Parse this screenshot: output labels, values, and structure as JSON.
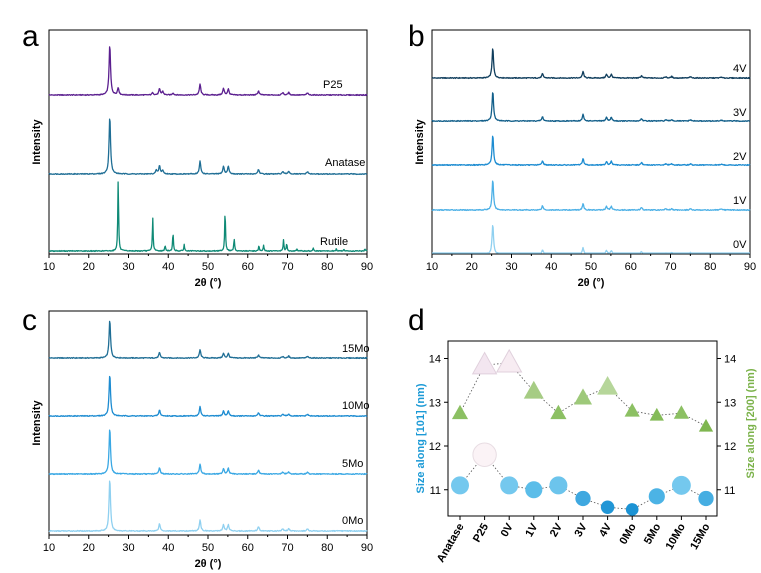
{
  "chart_data": [
    {
      "panel": "a",
      "type": "line",
      "xlabel": "2θ (°)",
      "ylabel": "Intensity",
      "xlim": [
        10,
        90
      ],
      "xticks": [
        "10",
        "20",
        "30",
        "40",
        "50",
        "60",
        "70",
        "80",
        "90"
      ],
      "series": [
        {
          "name": "P25",
          "color": "#5b1f8f",
          "peaks": [
            [
              25.3,
              100
            ],
            [
              27.4,
              14
            ],
            [
              36.1,
              5
            ],
            [
              37.8,
              12
            ],
            [
              38.6,
              7
            ],
            [
              41.2,
              4
            ],
            [
              48.0,
              22
            ],
            [
              53.9,
              13
            ],
            [
              55.1,
              12
            ],
            [
              62.7,
              8
            ],
            [
              68.8,
              5
            ],
            [
              70.3,
              5
            ],
            [
              75.0,
              4
            ]
          ]
        },
        {
          "name": "Anatase",
          "color": "#1f6e95",
          "peaks": [
            [
              25.3,
              100
            ],
            [
              37.0,
              6
            ],
            [
              37.8,
              14
            ],
            [
              38.6,
              6
            ],
            [
              48.0,
              22
            ],
            [
              53.9,
              13
            ],
            [
              55.1,
              13
            ],
            [
              62.7,
              8
            ],
            [
              68.8,
              4
            ],
            [
              70.3,
              5
            ],
            [
              75.0,
              4
            ]
          ]
        },
        {
          "name": "Rutile",
          "color": "#0f8a76",
          "peaks": [
            [
              27.4,
              100
            ],
            [
              36.1,
              47
            ],
            [
              39.2,
              8
            ],
            [
              41.2,
              25
            ],
            [
              44.0,
              9
            ],
            [
              54.3,
              57
            ],
            [
              56.6,
              17
            ],
            [
              62.8,
              7
            ],
            [
              64.0,
              8
            ],
            [
              69.0,
              15
            ],
            [
              69.8,
              10
            ],
            [
              72.4,
              3
            ],
            [
              76.5,
              4
            ],
            [
              82.3,
              3
            ],
            [
              84.2,
              3
            ],
            [
              89.5,
              3
            ]
          ]
        }
      ]
    },
    {
      "panel": "b",
      "type": "line",
      "xlabel": "2θ (°)",
      "ylabel": "Intensity",
      "xlim": [
        10,
        90
      ],
      "xticks": [
        "10",
        "20",
        "30",
        "40",
        "50",
        "60",
        "70",
        "80",
        "90"
      ],
      "series": [
        {
          "name": "4V",
          "color": "#0f3d5c",
          "peaks": [
            [
              25.3,
              100
            ],
            [
              37.8,
              14
            ],
            [
              48.0,
              22
            ],
            [
              53.9,
              12
            ],
            [
              55.1,
              12
            ],
            [
              62.7,
              8
            ],
            [
              68.8,
              4
            ],
            [
              70.3,
              5
            ],
            [
              75.0,
              4
            ],
            [
              82.7,
              3
            ]
          ]
        },
        {
          "name": "3V",
          "color": "#125f8a",
          "peaks": [
            [
              25.3,
              100
            ],
            [
              37.8,
              14
            ],
            [
              48.0,
              22
            ],
            [
              53.9,
              12
            ],
            [
              55.1,
              12
            ],
            [
              62.7,
              8
            ],
            [
              68.8,
              4
            ],
            [
              70.3,
              5
            ],
            [
              75.0,
              4
            ],
            [
              82.7,
              3
            ]
          ]
        },
        {
          "name": "2V",
          "color": "#1d8cd1",
          "peaks": [
            [
              25.3,
              100
            ],
            [
              37.8,
              14
            ],
            [
              48.0,
              22
            ],
            [
              53.9,
              12
            ],
            [
              55.1,
              12
            ],
            [
              62.7,
              8
            ],
            [
              68.8,
              4
            ],
            [
              70.3,
              5
            ],
            [
              75.0,
              4
            ],
            [
              82.7,
              3
            ]
          ]
        },
        {
          "name": "1V",
          "color": "#4cb0e6",
          "peaks": [
            [
              25.3,
              100
            ],
            [
              37.8,
              14
            ],
            [
              48.0,
              22
            ],
            [
              53.9,
              12
            ],
            [
              55.1,
              12
            ],
            [
              62.7,
              8
            ],
            [
              68.8,
              4
            ],
            [
              70.3,
              5
            ],
            [
              75.0,
              4
            ],
            [
              82.7,
              3
            ]
          ]
        },
        {
          "name": "0V",
          "color": "#8fd0f0",
          "peaks": [
            [
              25.3,
              100
            ],
            [
              37.8,
              14
            ],
            [
              48.0,
              22
            ],
            [
              53.9,
              12
            ],
            [
              55.1,
              12
            ],
            [
              62.7,
              8
            ],
            [
              68.8,
              4
            ],
            [
              70.3,
              5
            ],
            [
              75.0,
              4
            ],
            [
              82.7,
              3
            ]
          ]
        }
      ]
    },
    {
      "panel": "c",
      "type": "line",
      "xlabel": "2θ (°)",
      "ylabel": "Intensity",
      "xlim": [
        10,
        90
      ],
      "xticks": [
        "10",
        "20",
        "30",
        "40",
        "50",
        "60",
        "70",
        "80",
        "90"
      ],
      "series": [
        {
          "name": "15Mo",
          "color": "#1f6e95",
          "peaks": [
            [
              25.3,
              100
            ],
            [
              37.8,
              14
            ],
            [
              48.0,
              22
            ],
            [
              53.9,
              12
            ],
            [
              55.1,
              12
            ],
            [
              62.7,
              8
            ],
            [
              68.8,
              4
            ],
            [
              70.3,
              5
            ],
            [
              75.0,
              4
            ]
          ]
        },
        {
          "name": "10Mo",
          "color": "#1d8cd1",
          "peaks": [
            [
              25.3,
              100
            ],
            [
              37.8,
              14
            ],
            [
              48.0,
              22
            ],
            [
              53.9,
              12
            ],
            [
              55.1,
              12
            ],
            [
              62.7,
              8
            ],
            [
              68.8,
              4
            ],
            [
              70.3,
              5
            ],
            [
              75.0,
              4
            ]
          ]
        },
        {
          "name": "5Mo",
          "color": "#3aa8e4",
          "peaks": [
            [
              25.3,
              100
            ],
            [
              37.8,
              14
            ],
            [
              48.0,
              22
            ],
            [
              53.9,
              12
            ],
            [
              55.1,
              12
            ],
            [
              62.7,
              8
            ],
            [
              68.8,
              4
            ],
            [
              70.3,
              5
            ],
            [
              75.0,
              4
            ]
          ]
        },
        {
          "name": "0Mo",
          "color": "#8fd0f0",
          "peaks": [
            [
              25.3,
              100
            ],
            [
              37.8,
              14
            ],
            [
              48.0,
              22
            ],
            [
              53.9,
              12
            ],
            [
              55.1,
              12
            ],
            [
              62.7,
              8
            ],
            [
              68.8,
              4
            ],
            [
              70.3,
              5
            ],
            [
              75.0,
              4
            ]
          ]
        }
      ]
    },
    {
      "panel": "d",
      "type": "scatter",
      "categories": [
        "Anatase",
        "P25",
        "0V",
        "1V",
        "2V",
        "3V",
        "4V",
        "0Mo",
        "5Mo",
        "10Mo",
        "15Mo"
      ],
      "ylabel_left": "Size along [101] (nm)",
      "ylabel_right": "Size along [200] (nm)",
      "ylim_left": [
        10.4,
        14.4
      ],
      "ylim_right": [
        10.4,
        14.4
      ],
      "yticks_left": [
        "11",
        "12",
        "13",
        "14"
      ],
      "yticks_right": [
        "11",
        "12",
        "13",
        "14"
      ],
      "left_color": "#1c9ad6",
      "right_color": "#7bb24a",
      "series": [
        {
          "axis": "left",
          "values": [
            11.1,
            11.8,
            11.1,
            11.0,
            11.1,
            10.8,
            10.6,
            10.55,
            10.85,
            11.1,
            10.8
          ],
          "sizes": [
            1.0,
            1.3,
            1.0,
            0.95,
            1.0,
            0.85,
            0.75,
            0.7,
            0.9,
            1.05,
            0.85
          ]
        },
        {
          "axis": "right",
          "values": [
            12.75,
            13.85,
            13.9,
            13.25,
            12.75,
            13.1,
            13.35,
            12.8,
            12.7,
            12.75,
            12.45
          ],
          "sizes": [
            0.85,
            1.25,
            1.3,
            1.05,
            0.85,
            0.95,
            1.1,
            0.8,
            0.75,
            0.8,
            0.75
          ]
        }
      ]
    }
  ]
}
